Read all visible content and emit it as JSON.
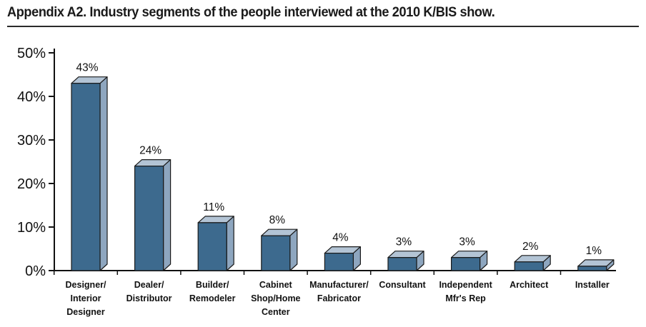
{
  "chart_data": {
    "type": "bar",
    "title": "Appendix A2. Industry segments of the people interviewed at the 2010 K/BIS show.",
    "categories": [
      [
        "Designer/",
        "Interior",
        "Designer"
      ],
      [
        "Dealer/",
        "Distributor"
      ],
      [
        "Builder/",
        "Remodeler"
      ],
      [
        "Cabinet",
        "Shop/Home",
        "Center"
      ],
      [
        "Manufacturer/",
        "Fabricator"
      ],
      [
        "Consultant"
      ],
      [
        "Independent",
        "Mfr's Rep"
      ],
      [
        "Architect"
      ],
      [
        "Installer"
      ]
    ],
    "values": [
      43,
      24,
      11,
      8,
      4,
      3,
      3,
      2,
      1
    ],
    "value_labels": [
      "43%",
      "24%",
      "11%",
      "8%",
      "4%",
      "3%",
      "3%",
      "2%",
      "1%"
    ],
    "ylim": [
      0,
      50
    ],
    "yticks": [
      0,
      10,
      20,
      30,
      40,
      50
    ],
    "ytick_labels": [
      "0%",
      "10%",
      "20%",
      "30%",
      "40%",
      "50%"
    ],
    "xlabel": "",
    "ylabel": "",
    "grid": false,
    "colors": {
      "bar_front": "#3d6a8e",
      "bar_side": "#8ea6bf",
      "bar_top": "#b3c4d5",
      "outline": "#1a1a1a"
    }
  }
}
